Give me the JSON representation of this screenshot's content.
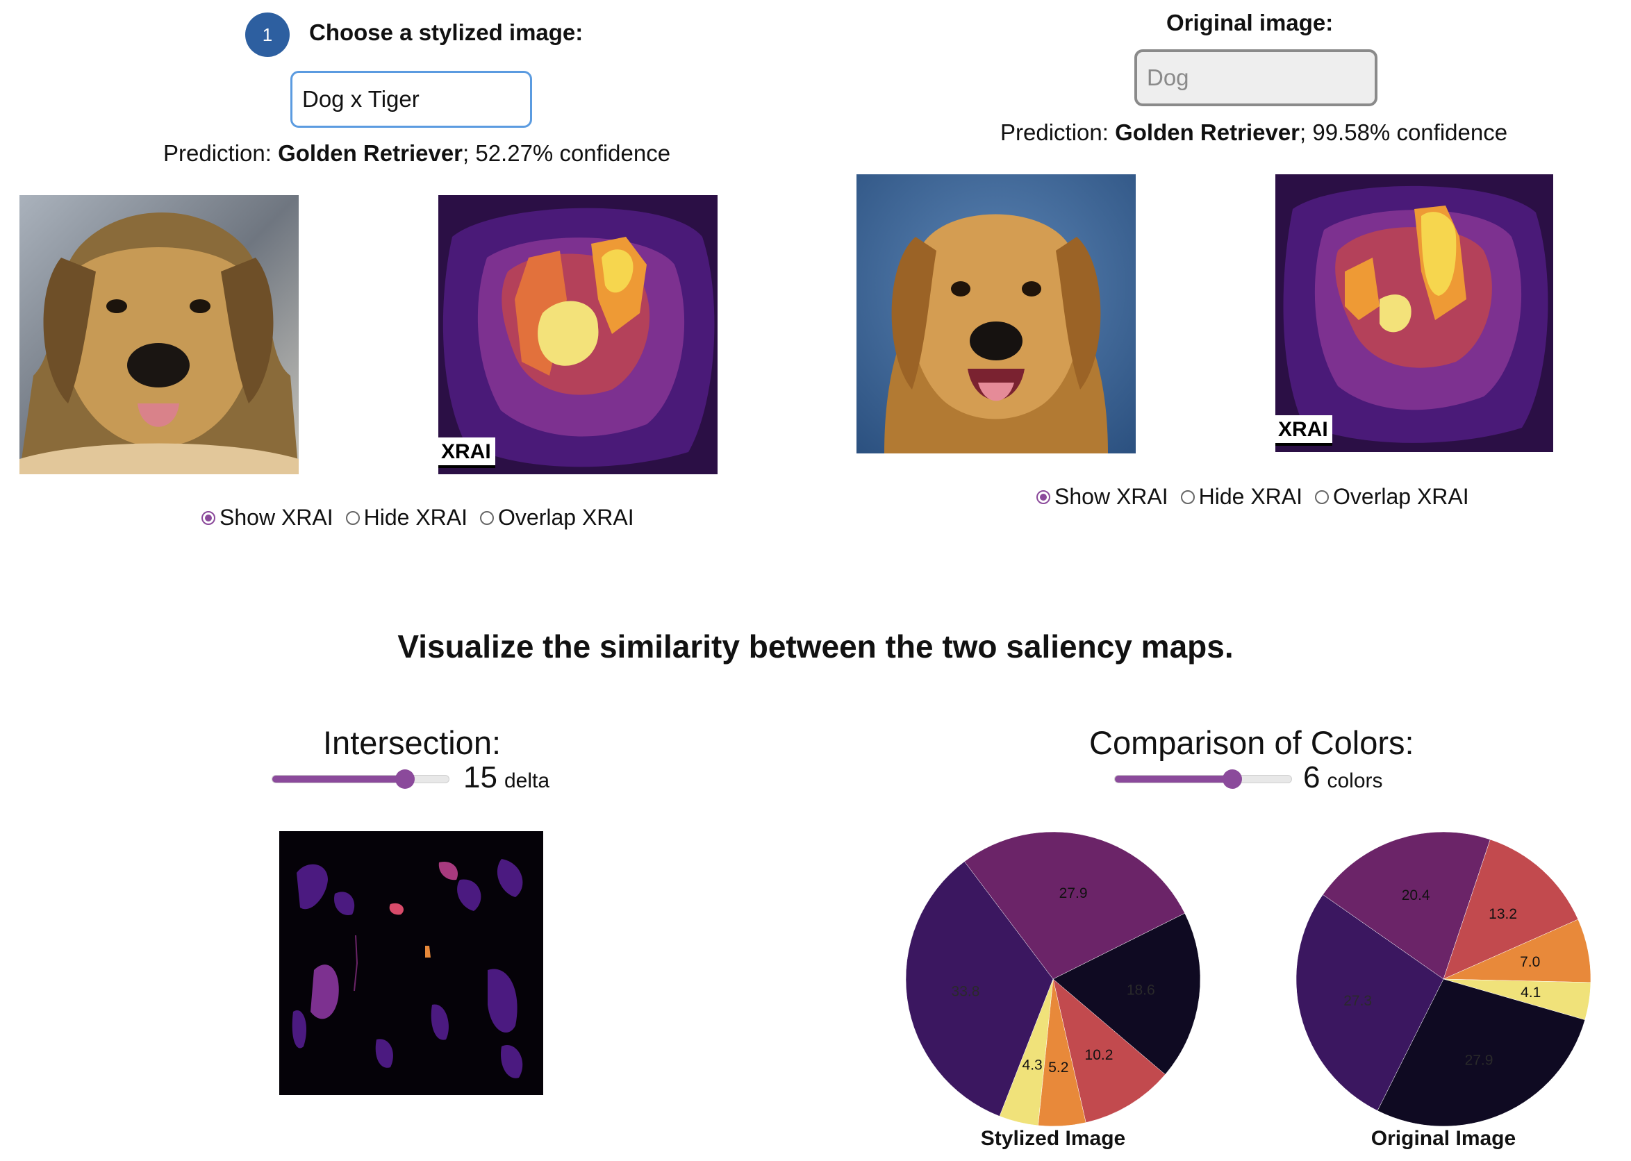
{
  "colors": {
    "accent": "#8b4a9b",
    "step_badge": "#2d5fa0",
    "focus_border": "#5b9be0",
    "inferno": [
      "#0f0a22",
      "#3b1760",
      "#6b2468",
      "#c24a4e",
      "#e8893a",
      "#f0e27a"
    ]
  },
  "stylized": {
    "step_number": "1",
    "heading": "Choose a stylized image:",
    "select_value": "Dog x Tiger",
    "prediction_prefix": "Prediction: ",
    "prediction_class": "Golden Retriever",
    "prediction_suffix": "; 52.27% confidence",
    "xrai_badge": "XRAI",
    "radio_options": [
      "Show XRAI",
      "Hide XRAI",
      "Overlap XRAI"
    ],
    "radio_selected": 0
  },
  "original": {
    "heading": "Original image:",
    "select_value": "Dog",
    "prediction_prefix": "Prediction: ",
    "prediction_class": "Golden Retriever",
    "prediction_suffix": "; 99.58% confidence",
    "xrai_badge": "XRAI",
    "radio_options": [
      "Show XRAI",
      "Hide XRAI",
      "Overlap XRAI"
    ],
    "radio_selected": 0
  },
  "similarity": {
    "title": "Visualize the similarity between the two saliency maps.",
    "intersection": {
      "label": "Intersection:",
      "value": 15,
      "unit": "delta",
      "min": 0,
      "max": 20
    },
    "colors_compare": {
      "label": "Comparison of Colors:",
      "value": 6,
      "unit": "colors",
      "min": 2,
      "max": 8
    }
  },
  "chart_data": [
    {
      "type": "pie",
      "title": "Stylized Image",
      "labels": [
        "27.9",
        "18.6",
        "10.2",
        "5.2",
        "4.3",
        "33.8"
      ],
      "values": [
        27.9,
        18.6,
        10.2,
        5.2,
        4.3,
        33.8
      ],
      "colors": [
        "#6b2468",
        "#0f0a22",
        "#c24a4e",
        "#e8893a",
        "#f0e27a",
        "#3b1760"
      ]
    },
    {
      "type": "pie",
      "title": "Original Image",
      "labels": [
        "20.4",
        "13.2",
        "7.0",
        "4.1",
        "27.9",
        "27.3"
      ],
      "values": [
        20.4,
        13.2,
        7.0,
        4.1,
        27.9,
        27.3
      ],
      "colors": [
        "#6b2468",
        "#c24a4e",
        "#e8893a",
        "#f0e27a",
        "#0f0a22",
        "#3b1760"
      ]
    }
  ]
}
